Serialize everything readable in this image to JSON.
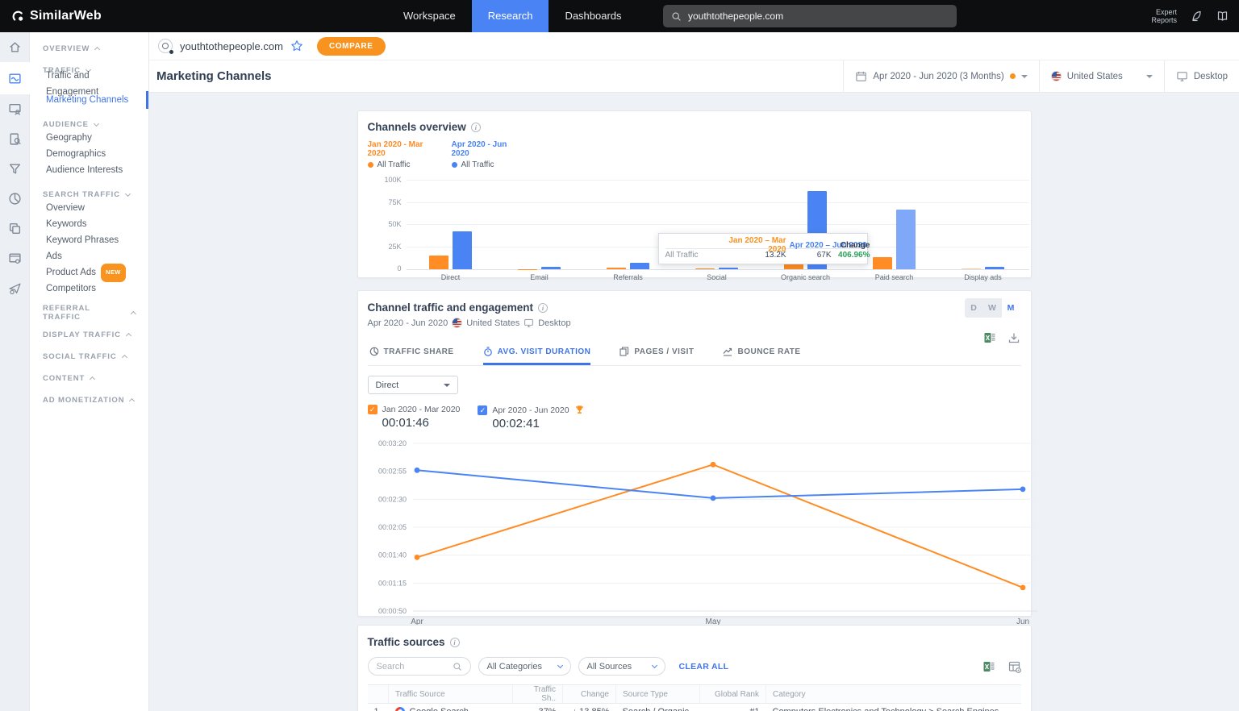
{
  "topnav": {
    "brand": "SimilarWeb",
    "items": [
      {
        "label": "Workspace",
        "active": false
      },
      {
        "label": "Research",
        "active": true
      },
      {
        "label": "Dashboards",
        "active": false
      }
    ],
    "search_value": "youthtothepeople.com",
    "expert_reports": "Expert Reports"
  },
  "icon_rail": {
    "items": [
      {
        "name": "home-icon",
        "icon": "home",
        "active": false
      },
      {
        "name": "traffic-engagement-icon",
        "icon": "traffic",
        "active": true
      },
      {
        "name": "website-category-icon",
        "icon": "window_user",
        "active": false
      },
      {
        "name": "search-analysis-icon",
        "icon": "search_doc",
        "active": false
      },
      {
        "name": "conversion-funnel-icon",
        "icon": "funnel",
        "active": false
      },
      {
        "name": "market-share-pie-icon",
        "icon": "pie",
        "active": false
      },
      {
        "name": "app-compare-icon",
        "icon": "stack",
        "active": false
      },
      {
        "name": "research-tools-icon",
        "icon": "window_gear",
        "active": false
      },
      {
        "name": "lead-generator-icon",
        "icon": "plane",
        "active": false
      }
    ]
  },
  "sidebar": {
    "sections": [
      {
        "label": "OVERVIEW",
        "caret": "up",
        "items": []
      },
      {
        "label": "TRAFFIC",
        "caret": "down",
        "items": [
          {
            "label": "Traffic and Engagement",
            "active": false
          },
          {
            "label": "Marketing Channels",
            "active": true
          }
        ]
      },
      {
        "label": "AUDIENCE",
        "caret": "down",
        "items": [
          {
            "label": "Geography",
            "active": false
          },
          {
            "label": "Demographics",
            "active": false
          },
          {
            "label": "Audience Interests",
            "active": false
          }
        ]
      },
      {
        "label": "SEARCH TRAFFIC",
        "caret": "down",
        "items": [
          {
            "label": "Overview",
            "active": false
          },
          {
            "label": "Keywords",
            "active": false
          },
          {
            "label": "Keyword Phrases",
            "active": false
          },
          {
            "label": "Ads",
            "active": false
          },
          {
            "label": "Product Ads",
            "active": false,
            "badge": "NEW"
          },
          {
            "label": "Competitors",
            "active": false
          }
        ]
      },
      {
        "label": "REFERRAL TRAFFIC",
        "caret": "up",
        "items": []
      },
      {
        "label": "DISPLAY TRAFFIC",
        "caret": "up",
        "items": []
      },
      {
        "label": "SOCIAL TRAFFIC",
        "caret": "up",
        "items": []
      },
      {
        "label": "CONTENT",
        "caret": "up",
        "items": []
      },
      {
        "label": "AD MONETIZATION",
        "caret": "up",
        "items": []
      }
    ]
  },
  "domain_bar": {
    "domain": "youthtothepeople.com",
    "compare_label": "COMPARE"
  },
  "page_header": {
    "title": "Marketing Channels",
    "date_filter": "Apr 2020 - Jun 2020 (3 Months)",
    "country_filter": "United States",
    "device_filter": "Desktop"
  },
  "channels_overview": {
    "title": "Channels overview",
    "legend": [
      {
        "period": "Jan 2020 - Mar 2020",
        "series": "All Traffic",
        "color": "#ff8c24"
      },
      {
        "period": "Apr 2020 - Jun 2020",
        "series": "All Traffic",
        "color": "#4a84f4"
      }
    ],
    "tooltip": {
      "col1": "Jan 2020 – Mar 2020",
      "col2": "Apr 2020 – Jun 2020",
      "col3": "Change",
      "row_label": "All Traffic",
      "val1": "13.2K",
      "val2": "67K",
      "change": "406.96%"
    }
  },
  "engagement": {
    "title": "Channel traffic and engagement",
    "subtitle_period": "Apr 2020 - Jun 2020",
    "subtitle_country": "United States",
    "subtitle_device": "Desktop",
    "granularity_options": [
      "D",
      "W",
      "M"
    ],
    "granularity_active": "M",
    "tabs": [
      {
        "label": "TRAFFIC SHARE",
        "icon": "tab_pie",
        "active": false
      },
      {
        "label": "AVG. VISIT DURATION",
        "icon": "tab_clock",
        "active": true
      },
      {
        "label": "PAGES / VISIT",
        "icon": "tab_pages",
        "active": false
      },
      {
        "label": "BOUNCE RATE",
        "icon": "tab_bounce",
        "active": false
      }
    ],
    "channel_select_value": "Direct",
    "legend": [
      {
        "label": "Jan 2020 - Mar 2020",
        "value": "00:01:46",
        "color": "#ff8c24",
        "winner": false
      },
      {
        "label": "Apr 2020 - Jun 2020",
        "value": "00:02:41",
        "color": "#4a84f4",
        "winner": true
      }
    ]
  },
  "traffic_sources": {
    "title": "Traffic sources",
    "search_placeholder": "Search",
    "category_filter": "All Categories",
    "source_filter": "All Sources",
    "clear_all": "CLEAR ALL",
    "columns": [
      "Traffic Source",
      "Traffic Sh..",
      "Change",
      "Source Type",
      "Global Rank",
      "Category"
    ],
    "rows": [
      {
        "index": "1",
        "source": "Google Search",
        "share": "37%",
        "change": "↓ 13.85%",
        "change_dir": "down",
        "source_type": "Search / Organic",
        "global_rank": "#1",
        "category": "Computers Electronics and Technology > Search Engines"
      }
    ]
  },
  "chart_data": [
    {
      "type": "bar",
      "title": "Channels overview",
      "categories": [
        "Direct",
        "Email",
        "Referrals",
        "Social",
        "Organic search",
        "Paid search",
        "Display ads"
      ],
      "ymax": 100000,
      "yticks": [
        {
          "v": 0,
          "label": "0"
        },
        {
          "v": 25000,
          "label": "25K"
        },
        {
          "v": 50000,
          "label": "50K"
        },
        {
          "v": 75000,
          "label": "75K"
        },
        {
          "v": 100000,
          "label": "100K"
        }
      ],
      "series": [
        {
          "name": "Jan 2020 - Mar 2020",
          "color": "#ff8c24",
          "light_color": "#ffcb9c",
          "values": [
            15800,
            400,
            2000,
            1000,
            34000,
            13200,
            1200
          ],
          "light_indices": [
            6
          ]
        },
        {
          "name": "Apr 2020 - Jun 2020",
          "color": "#4a84f4",
          "light_color": "#7fa9f8",
          "values": [
            43000,
            2500,
            7000,
            2000,
            88000,
            67000,
            3000
          ],
          "light_indices": [
            5
          ]
        }
      ],
      "legend_position": "top-left",
      "grid": true
    },
    {
      "type": "line",
      "title": "Avg. visit duration - Direct",
      "x": [
        "Apr",
        "May",
        "Jun"
      ],
      "y_range_seconds": [
        50,
        200
      ],
      "y_ticks": [
        {
          "seconds": 200,
          "label": "00:03:20"
        },
        {
          "seconds": 175,
          "label": "00:02:55"
        },
        {
          "seconds": 150,
          "label": "00:02:30"
        },
        {
          "seconds": 125,
          "label": "00:02:05"
        },
        {
          "seconds": 100,
          "label": "00:01:40"
        },
        {
          "seconds": 75,
          "label": "00:01:15"
        },
        {
          "seconds": 50,
          "label": "00:00:50"
        }
      ],
      "series": [
        {
          "name": "Jan 2020 - Mar 2020",
          "color": "#ff8c24",
          "values_seconds": [
            98,
            181,
            71
          ],
          "values_label": [
            "00:01:38",
            "00:03:01",
            "00:01:11"
          ]
        },
        {
          "name": "Apr 2020 - Jun 2020",
          "color": "#4a84f4",
          "values_seconds": [
            176,
            151,
            159
          ],
          "values_label": [
            "00:02:56",
            "00:02:31",
            "00:02:39"
          ]
        }
      ],
      "grid": true
    }
  ]
}
